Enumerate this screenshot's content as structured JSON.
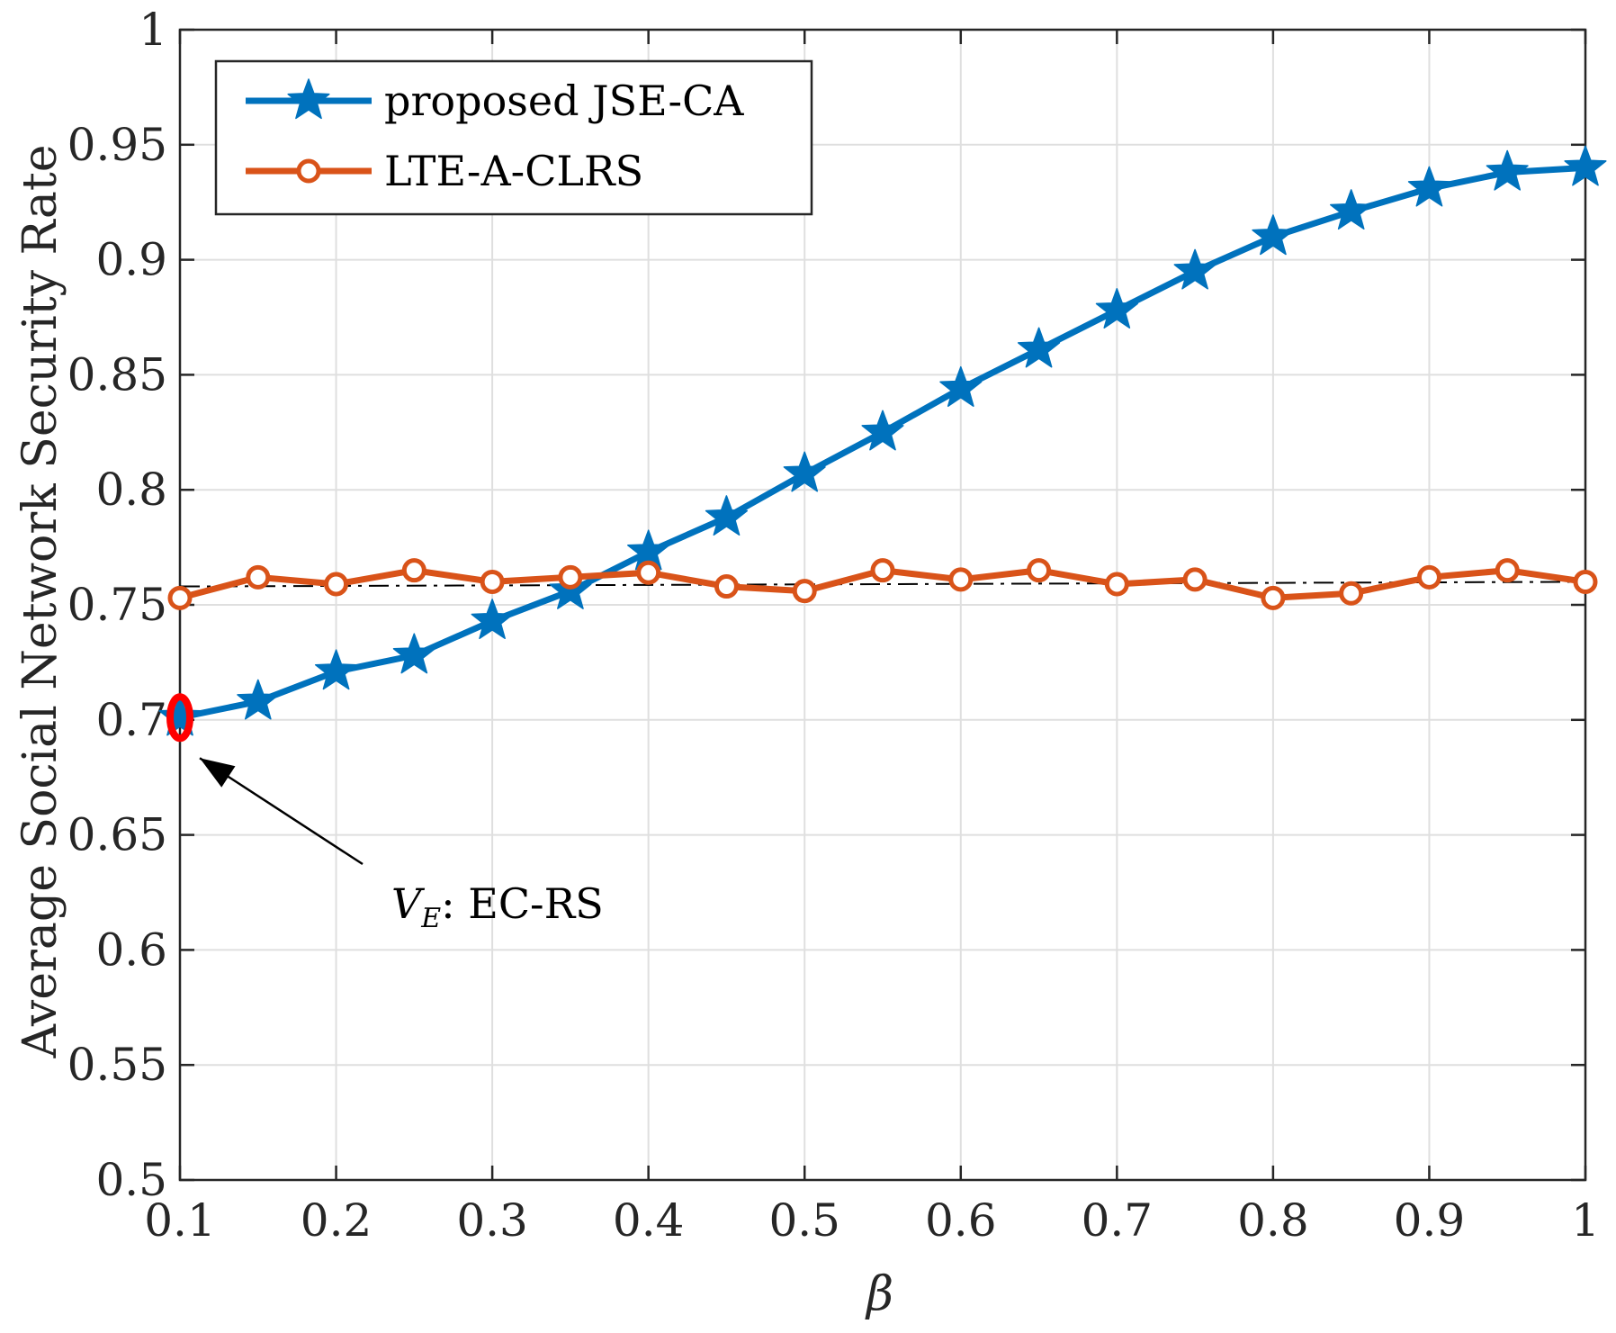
{
  "chart_data": {
    "type": "line",
    "title": "",
    "xlabel": "β",
    "ylabel": "Average Social Network Security Rate",
    "xlim": [
      0.1,
      1
    ],
    "ylim": [
      0.5,
      1
    ],
    "grid": true,
    "x": [
      0.1,
      0.15,
      0.2,
      0.25,
      0.3,
      0.35,
      0.4,
      0.45,
      0.5,
      0.55,
      0.6,
      0.65,
      0.7,
      0.75,
      0.8,
      0.85,
      0.9,
      0.95,
      1
    ],
    "xticks": [
      0.1,
      0.2,
      0.3,
      0.4,
      0.5,
      0.6,
      0.7,
      0.8,
      0.9,
      1
    ],
    "xtick_labels": [
      "0.1",
      "0.2",
      "0.3",
      "0.4",
      "0.5",
      "0.6",
      "0.7",
      "0.8",
      "0.9",
      "1"
    ],
    "yticks": [
      0.5,
      0.55,
      0.6,
      0.65,
      0.7,
      0.75,
      0.8,
      0.85,
      0.9,
      0.95,
      1
    ],
    "ytick_labels": [
      "0.5",
      "0.55",
      "0.6",
      "0.65",
      "0.7",
      "0.75",
      "0.8",
      "0.85",
      "0.9",
      "0.95",
      "1"
    ],
    "series": [
      {
        "name": "proposed JSE-CA",
        "color": "#0072BD",
        "marker": "star",
        "values": [
          0.701,
          0.708,
          0.721,
          0.728,
          0.743,
          0.756,
          0.773,
          0.788,
          0.807,
          0.825,
          0.844,
          0.861,
          0.878,
          0.895,
          0.91,
          0.921,
          0.931,
          0.938,
          0.94
        ]
      },
      {
        "name": "LTE-A-CLRS",
        "color": "#D95319",
        "marker": "circle",
        "values": [
          0.753,
          0.762,
          0.759,
          0.765,
          0.76,
          0.762,
          0.764,
          0.758,
          0.756,
          0.765,
          0.761,
          0.765,
          0.759,
          0.761,
          0.753,
          0.755,
          0.762,
          0.765,
          0.76
        ]
      }
    ],
    "reference_line": {
      "style": "dash-dot",
      "color": "#000000",
      "from": [
        0.1,
        0.758
      ],
      "to": [
        1,
        0.76
      ]
    },
    "legend": {
      "position": "top-left",
      "entries": [
        "proposed JSE-CA",
        "LTE-A-CLRS"
      ]
    },
    "annotations": [
      {
        "text_main": "V",
        "text_sub": "E",
        "text_rest": ": EC-RS",
        "points_to": [
          0.1,
          0.701
        ],
        "highlight_color": "#FF0000"
      }
    ]
  }
}
